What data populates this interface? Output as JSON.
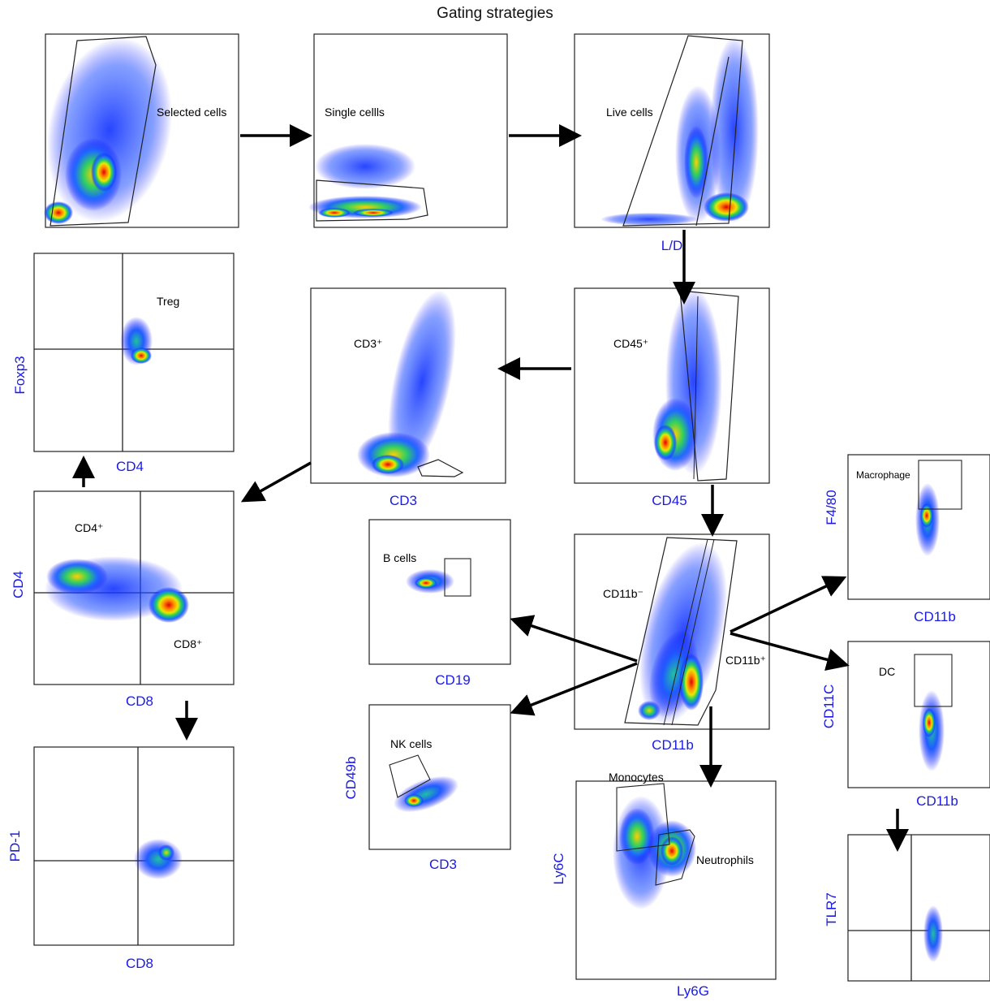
{
  "title": "Gating strategies",
  "colors": {
    "axis_label": "#1a1ae6",
    "gate": "#222222",
    "arrow": "#000000"
  },
  "panels": {
    "p1": {
      "gate_label": "Selected cells",
      "xlabel": "",
      "ylabel": ""
    },
    "p2": {
      "gate_label": "Single cellls",
      "xlabel": "",
      "ylabel": ""
    },
    "p3": {
      "gate_label": "Live cells",
      "xlabel": "L/D",
      "ylabel": ""
    },
    "p4": {
      "gate_label": "CD45⁺",
      "xlabel": "CD45",
      "ylabel": ""
    },
    "p5": {
      "gate_label": "CD3⁺",
      "xlabel": "CD3",
      "ylabel": ""
    },
    "p6": {
      "gate_label": "Treg",
      "xlabel": "CD4",
      "ylabel": "Foxp3"
    },
    "p7": {
      "gate_label": "CD4⁺",
      "gate_label2": "CD8⁺",
      "xlabel": "CD8",
      "ylabel": "CD4"
    },
    "p8": {
      "gate_label": "",
      "xlabel": "CD8",
      "ylabel": "PD-1"
    },
    "p9": {
      "gate_label": "CD11b⁻",
      "gate_label2": "CD11b⁺",
      "xlabel": "CD11b",
      "ylabel": ""
    },
    "p10": {
      "gate_label": "B cells",
      "xlabel": "CD19",
      "ylabel": ""
    },
    "p11": {
      "gate_label": "NK cells",
      "xlabel": "CD3",
      "ylabel": "CD49b"
    },
    "p12": {
      "gate_label": "Monocytes",
      "gate_label2": "Neutrophils",
      "xlabel": "Ly6G",
      "ylabel": "Ly6C"
    },
    "p13": {
      "gate_label": "Macrophage",
      "xlabel": "CD11b",
      "ylabel": "F4/80"
    },
    "p14": {
      "gate_label": "DC",
      "xlabel": "CD11b",
      "ylabel": "CD11C"
    },
    "p15": {
      "gate_label": "",
      "xlabel": "",
      "ylabel": "TLR7"
    }
  }
}
